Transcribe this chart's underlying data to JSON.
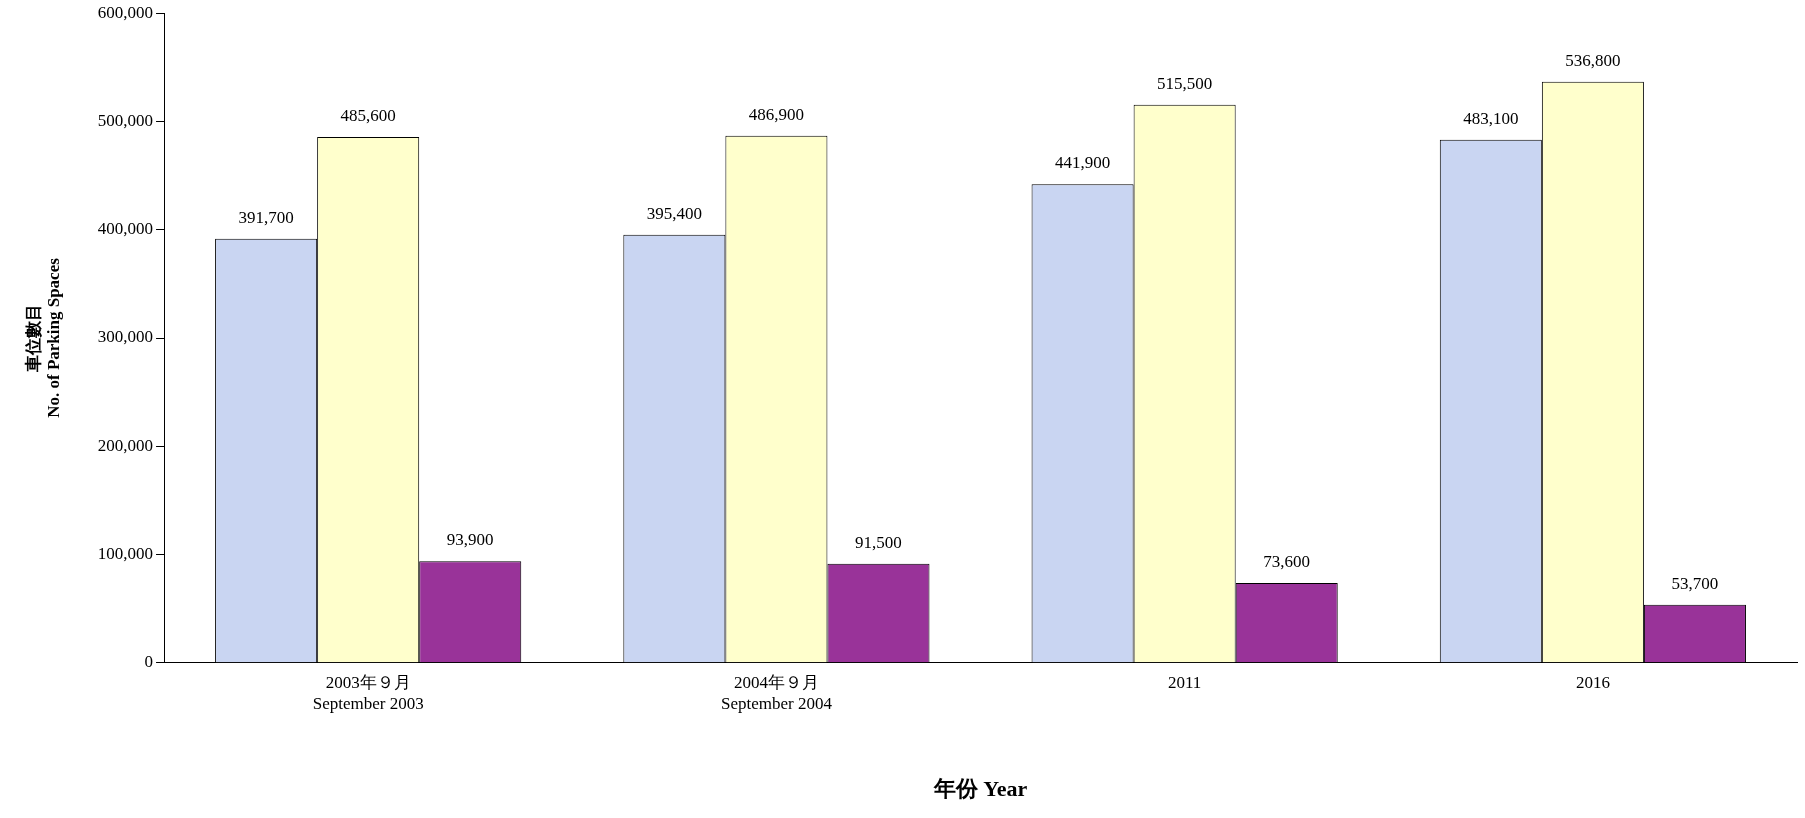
{
  "chart_data": {
    "type": "bar",
    "xlabel": "年份 Year",
    "ylabel": "車位數目\nNo. of Parking Spaces",
    "categories": [
      "2003年９月\nSeptember 2003",
      "2004年９月\nSeptember 2004",
      "2011",
      "2016"
    ],
    "series": [
      {
        "color": "#c9d5f2",
        "values": [
          391700,
          395400,
          441900,
          483100
        ],
        "value_labels": [
          "391,700",
          "395,400",
          "441,900",
          "483,100"
        ]
      },
      {
        "color": "#ffffcc",
        "values": [
          485600,
          486900,
          515500,
          536800
        ],
        "value_labels": [
          "485,600",
          "486,900",
          "515,500",
          "536,800"
        ]
      },
      {
        "color": "#993399",
        "values": [
          93900,
          91500,
          73600,
          53700
        ],
        "value_labels": [
          "93,900",
          "91,500",
          "73,600",
          "53,700"
        ]
      }
    ],
    "ylim": [
      0,
      600000
    ],
    "yticks": [
      {
        "value": 0,
        "label": "0"
      },
      {
        "value": 100000,
        "label": "100,000"
      },
      {
        "value": 200000,
        "label": "200,000"
      },
      {
        "value": 300000,
        "label": "300,000"
      },
      {
        "value": 400000,
        "label": "400,000"
      },
      {
        "value": 500000,
        "label": "500,000"
      },
      {
        "value": 600000,
        "label": "600,000"
      }
    ],
    "grid": false,
    "legend": false
  }
}
